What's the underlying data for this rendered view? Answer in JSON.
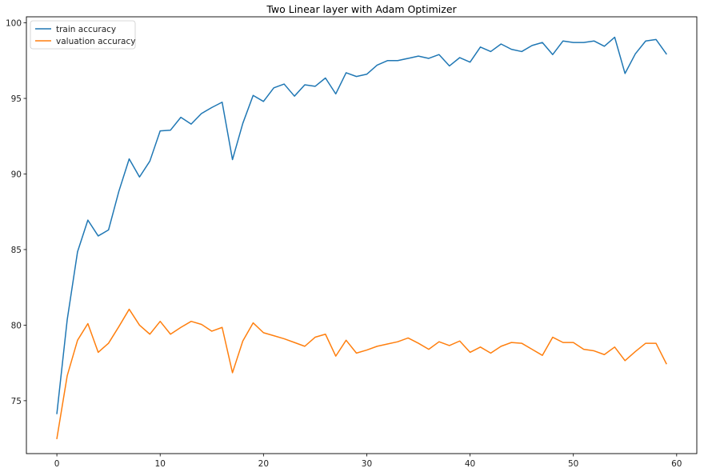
{
  "chart_data": {
    "type": "line",
    "title": "Two Linear layer with Adam Optimizer",
    "xlabel": "",
    "ylabel": "",
    "xlim": [
      -2.95,
      61.95
    ],
    "ylim": [
      71.5,
      100.4
    ],
    "xticks": [
      0,
      10,
      20,
      30,
      40,
      50,
      60
    ],
    "yticks": [
      75,
      80,
      85,
      90,
      95,
      100
    ],
    "legend_position": "top-left",
    "grid": false,
    "x": [
      0,
      1,
      2,
      3,
      4,
      5,
      6,
      7,
      8,
      9,
      10,
      11,
      12,
      13,
      14,
      15,
      16,
      17,
      18,
      19,
      20,
      21,
      22,
      23,
      24,
      25,
      26,
      27,
      28,
      29,
      30,
      31,
      32,
      33,
      34,
      35,
      36,
      37,
      38,
      39,
      40,
      41,
      42,
      43,
      44,
      45,
      46,
      47,
      48,
      49,
      50,
      51,
      52,
      53,
      54,
      55,
      56,
      57,
      58,
      59
    ],
    "series": [
      {
        "name": "train accuracy",
        "color": "#1f77b4",
        "values": [
          74.15,
          80.35,
          84.85,
          86.95,
          85.9,
          86.3,
          88.85,
          91.0,
          89.8,
          90.85,
          92.85,
          92.9,
          93.75,
          93.3,
          94.0,
          94.4,
          94.75,
          90.95,
          93.35,
          95.2,
          94.8,
          95.7,
          95.95,
          95.15,
          95.9,
          95.8,
          96.35,
          95.3,
          96.7,
          96.45,
          96.6,
          97.2,
          97.5,
          97.5,
          97.65,
          97.8,
          97.65,
          97.9,
          97.15,
          97.7,
          97.4,
          98.4,
          98.1,
          98.6,
          98.25,
          98.1,
          98.5,
          98.7,
          97.9,
          98.8,
          98.7,
          98.7,
          98.8,
          98.45,
          99.05,
          96.65,
          97.95,
          98.8,
          98.9,
          97.95
        ]
      },
      {
        "name": "valuation accuracy",
        "color": "#ff7f0e",
        "values": [
          72.5,
          76.65,
          79.0,
          80.1,
          78.2,
          78.8,
          79.9,
          81.05,
          80.0,
          79.4,
          80.25,
          79.4,
          79.85,
          80.25,
          80.05,
          79.6,
          79.85,
          76.85,
          78.95,
          80.15,
          79.5,
          79.3,
          79.1,
          78.85,
          78.6,
          79.2,
          79.4,
          77.95,
          79.0,
          78.15,
          78.35,
          78.6,
          78.75,
          78.9,
          79.15,
          78.8,
          78.4,
          78.9,
          78.65,
          78.95,
          78.2,
          78.55,
          78.15,
          78.6,
          78.85,
          78.8,
          78.4,
          78.0,
          79.2,
          78.85,
          78.85,
          78.4,
          78.3,
          78.05,
          78.55,
          77.65,
          78.25,
          78.8,
          78.8,
          77.45
        ]
      }
    ]
  }
}
